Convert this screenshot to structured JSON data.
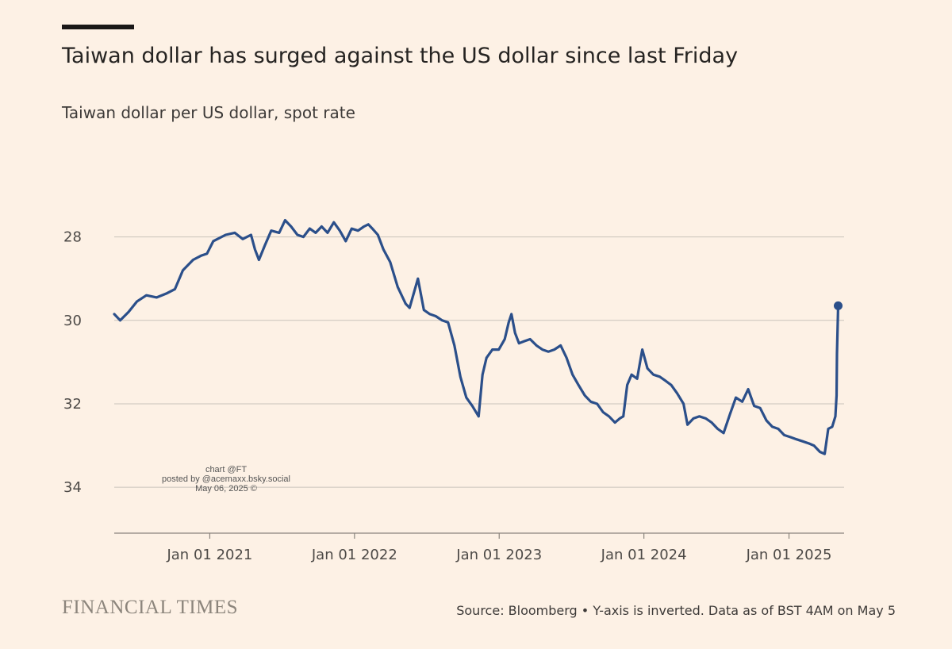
{
  "header": {
    "title": "Taiwan dollar has surged against the US dollar since last Friday",
    "subtitle": "Taiwan dollar per US dollar, spot rate"
  },
  "watermark": {
    "line1": "chart @FT",
    "line2": "posted by @acemaxx.bsky.social",
    "line3": "May 06, 2025 ©"
  },
  "footer": {
    "logo": "FINANCIAL TIMES",
    "source": "Source: Bloomberg • Y-axis is inverted. Data as of BST 4AM on May 5"
  },
  "colors": {
    "line": "#2b4f8a",
    "background": "#fdf1e5",
    "grid": "#c9c3bb"
  },
  "chart_data": {
    "type": "line",
    "title": "Taiwan dollar has surged against the US dollar since last Friday",
    "subtitle": "Taiwan dollar per US dollar, spot rate",
    "y_inverted": true,
    "ylim": [
      26.6,
      35.1
    ],
    "yticks": [
      28,
      30,
      32,
      34
    ],
    "xlim": [
      "2020-05-05",
      "2025-05-20"
    ],
    "xticks": [
      {
        "date": "2021-01-01",
        "label": "Jan 01 2021"
      },
      {
        "date": "2022-01-01",
        "label": "Jan 01 2022"
      },
      {
        "date": "2023-01-01",
        "label": "Jan 01 2023"
      },
      {
        "date": "2024-01-01",
        "label": "Jan 01 2024"
      },
      {
        "date": "2025-01-01",
        "label": "Jan 01 2025"
      }
    ],
    "grid": true,
    "series": [
      {
        "end_marker": true,
        "points": [
          [
            "2020-05-05",
            29.85
          ],
          [
            "2020-05-20",
            30.0
          ],
          [
            "2020-06-10",
            29.8
          ],
          [
            "2020-07-01",
            29.55
          ],
          [
            "2020-07-25",
            29.4
          ],
          [
            "2020-08-20",
            29.45
          ],
          [
            "2020-09-15",
            29.35
          ],
          [
            "2020-10-05",
            29.25
          ],
          [
            "2020-10-25",
            28.8
          ],
          [
            "2020-11-20",
            28.55
          ],
          [
            "2020-12-10",
            28.45
          ],
          [
            "2020-12-25",
            28.4
          ],
          [
            "2021-01-10",
            28.1
          ],
          [
            "2021-02-10",
            27.95
          ],
          [
            "2021-03-05",
            27.9
          ],
          [
            "2021-03-25",
            28.05
          ],
          [
            "2021-04-15",
            27.95
          ],
          [
            "2021-04-25",
            28.3
          ],
          [
            "2021-05-05",
            28.55
          ],
          [
            "2021-05-20",
            28.2
          ],
          [
            "2021-06-05",
            27.85
          ],
          [
            "2021-06-25",
            27.9
          ],
          [
            "2021-07-10",
            27.6
          ],
          [
            "2021-07-25",
            27.75
          ],
          [
            "2021-08-10",
            27.95
          ],
          [
            "2021-08-25",
            28.0
          ],
          [
            "2021-09-10",
            27.8
          ],
          [
            "2021-09-25",
            27.9
          ],
          [
            "2021-10-10",
            27.75
          ],
          [
            "2021-10-25",
            27.9
          ],
          [
            "2021-11-10",
            27.65
          ],
          [
            "2021-11-25",
            27.85
          ],
          [
            "2021-12-10",
            28.1
          ],
          [
            "2021-12-25",
            27.8
          ],
          [
            "2022-01-10",
            27.85
          ],
          [
            "2022-01-25",
            27.75
          ],
          [
            "2022-02-05",
            27.7
          ],
          [
            "2022-02-15",
            27.8
          ],
          [
            "2022-03-01",
            27.95
          ],
          [
            "2022-03-15",
            28.3
          ],
          [
            "2022-04-01",
            28.6
          ],
          [
            "2022-04-20",
            29.2
          ],
          [
            "2022-05-10",
            29.6
          ],
          [
            "2022-05-20",
            29.7
          ],
          [
            "2022-06-01",
            29.3
          ],
          [
            "2022-06-10",
            29.0
          ],
          [
            "2022-06-25",
            29.75
          ],
          [
            "2022-07-10",
            29.85
          ],
          [
            "2022-07-25",
            29.9
          ],
          [
            "2022-08-10",
            30.0
          ],
          [
            "2022-08-25",
            30.05
          ],
          [
            "2022-09-10",
            30.6
          ],
          [
            "2022-09-25",
            31.35
          ],
          [
            "2022-10-10",
            31.85
          ],
          [
            "2022-10-25",
            32.05
          ],
          [
            "2022-11-10",
            32.3
          ],
          [
            "2022-11-20",
            31.3
          ],
          [
            "2022-11-30",
            30.9
          ],
          [
            "2022-12-15",
            30.7
          ],
          [
            "2022-12-31",
            30.7
          ],
          [
            "2023-01-15",
            30.45
          ],
          [
            "2023-01-25",
            30.05
          ],
          [
            "2023-02-01",
            29.85
          ],
          [
            "2023-02-10",
            30.3
          ],
          [
            "2023-02-20",
            30.55
          ],
          [
            "2023-03-05",
            30.5
          ],
          [
            "2023-03-20",
            30.45
          ],
          [
            "2023-04-05",
            30.6
          ],
          [
            "2023-04-20",
            30.7
          ],
          [
            "2023-05-05",
            30.75
          ],
          [
            "2023-05-20",
            30.7
          ],
          [
            "2023-06-05",
            30.6
          ],
          [
            "2023-06-20",
            30.9
          ],
          [
            "2023-07-05",
            31.3
          ],
          [
            "2023-07-20",
            31.55
          ],
          [
            "2023-08-05",
            31.8
          ],
          [
            "2023-08-20",
            31.95
          ],
          [
            "2023-09-05",
            32.0
          ],
          [
            "2023-09-20",
            32.2
          ],
          [
            "2023-10-05",
            32.3
          ],
          [
            "2023-10-20",
            32.45
          ],
          [
            "2023-11-01",
            32.35
          ],
          [
            "2023-11-10",
            32.3
          ],
          [
            "2023-11-20",
            31.55
          ],
          [
            "2023-12-01",
            31.3
          ],
          [
            "2023-12-15",
            31.4
          ],
          [
            "2023-12-28",
            30.7
          ],
          [
            "2024-01-10",
            31.15
          ],
          [
            "2024-01-25",
            31.3
          ],
          [
            "2024-02-10",
            31.35
          ],
          [
            "2024-02-25",
            31.45
          ],
          [
            "2024-03-10",
            31.55
          ],
          [
            "2024-03-25",
            31.75
          ],
          [
            "2024-04-10",
            32.0
          ],
          [
            "2024-04-20",
            32.5
          ],
          [
            "2024-05-05",
            32.35
          ],
          [
            "2024-05-20",
            32.3
          ],
          [
            "2024-06-05",
            32.35
          ],
          [
            "2024-06-20",
            32.45
          ],
          [
            "2024-07-05",
            32.6
          ],
          [
            "2024-07-20",
            32.7
          ],
          [
            "2024-08-05",
            32.25
          ],
          [
            "2024-08-20",
            31.85
          ],
          [
            "2024-09-05",
            31.95
          ],
          [
            "2024-09-20",
            31.65
          ],
          [
            "2024-10-05",
            32.05
          ],
          [
            "2024-10-20",
            32.1
          ],
          [
            "2024-11-05",
            32.4
          ],
          [
            "2024-11-20",
            32.55
          ],
          [
            "2024-12-05",
            32.6
          ],
          [
            "2024-12-20",
            32.75
          ],
          [
            "2025-01-05",
            32.8
          ],
          [
            "2025-01-20",
            32.85
          ],
          [
            "2025-02-05",
            32.9
          ],
          [
            "2025-02-20",
            32.95
          ],
          [
            "2025-03-05",
            33.0
          ],
          [
            "2025-03-20",
            33.15
          ],
          [
            "2025-04-01",
            33.2
          ],
          [
            "2025-04-10",
            32.6
          ],
          [
            "2025-04-20",
            32.55
          ],
          [
            "2025-04-28",
            32.3
          ],
          [
            "2025-05-01",
            31.8
          ],
          [
            "2025-05-02",
            30.8
          ],
          [
            "2025-05-05",
            29.65
          ]
        ]
      }
    ]
  }
}
